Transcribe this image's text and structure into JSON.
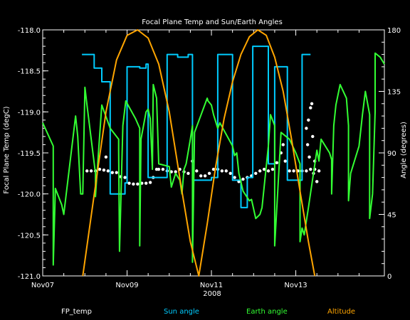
{
  "chart_data": {
    "type": "line",
    "title": "Focal Plane Temp and Sun/Earth Angles",
    "xlabel": "2008",
    "ylabel_left": "Focal Plane Temp (degC)",
    "ylabel_right": "Angle (degrees)",
    "x_unit": "days since Nov07",
    "x_range": [
      0,
      8.1
    ],
    "x_ticks": [
      {
        "x": 0,
        "label": "Nov07"
      },
      {
        "x": 2,
        "label": "Nov09"
      },
      {
        "x": 4,
        "label": "Nov11"
      },
      {
        "x": 6,
        "label": "Nov13"
      }
    ],
    "ylim_left": [
      -121.0,
      -118.0
    ],
    "yticks_left": [
      "-118.0",
      "-118.5",
      "-119.0",
      "-119.5",
      "-120.0",
      "-120.5",
      "-121.0"
    ],
    "ylim_right": [
      0,
      180
    ],
    "yticks_right": [
      "0",
      "45",
      "90",
      "135",
      "180"
    ],
    "grid": false,
    "series": [
      {
        "name": "FP_temp",
        "axis": "left",
        "style": "points",
        "color": "#ffffff",
        "points": [
          [
            1.05,
            -119.72
          ],
          [
            1.15,
            -119.72
          ],
          [
            1.25,
            -119.72
          ],
          [
            1.35,
            -119.7
          ],
          [
            1.45,
            -119.71
          ],
          [
            1.5,
            -119.55
          ],
          [
            1.55,
            -119.72
          ],
          [
            1.65,
            -119.74
          ],
          [
            1.75,
            -119.74
          ],
          [
            1.85,
            -119.79
          ],
          [
            1.95,
            -119.8
          ],
          [
            2.05,
            -119.87
          ],
          [
            2.15,
            -119.88
          ],
          [
            2.25,
            -119.88
          ],
          [
            2.35,
            -119.87
          ],
          [
            2.45,
            -119.87
          ],
          [
            2.55,
            -119.86
          ],
          [
            2.62,
            -119.8
          ],
          [
            2.7,
            -119.7
          ],
          [
            2.75,
            -119.7
          ],
          [
            2.85,
            -119.7
          ],
          [
            2.95,
            -119.72
          ],
          [
            3.05,
            -119.73
          ],
          [
            3.15,
            -119.73
          ],
          [
            3.25,
            -119.7
          ],
          [
            3.35,
            -119.73
          ],
          [
            3.45,
            -119.75
          ],
          [
            3.55,
            -119.6
          ],
          [
            3.65,
            -119.72
          ],
          [
            3.75,
            -119.78
          ],
          [
            3.85,
            -119.78
          ],
          [
            3.95,
            -119.75
          ],
          [
            4.05,
            -119.7
          ],
          [
            4.15,
            -119.7
          ],
          [
            4.25,
            -119.72
          ],
          [
            4.35,
            -119.72
          ],
          [
            4.45,
            -119.75
          ],
          [
            4.55,
            -119.8
          ],
          [
            4.65,
            -119.85
          ],
          [
            4.75,
            -119.82
          ],
          [
            4.85,
            -119.8
          ],
          [
            4.95,
            -119.78
          ],
          [
            5.05,
            -119.75
          ],
          [
            5.15,
            -119.72
          ],
          [
            5.25,
            -119.7
          ],
          [
            5.35,
            -119.72
          ],
          [
            5.45,
            -119.7
          ],
          [
            5.55,
            -119.62
          ],
          [
            5.65,
            -119.5
          ],
          [
            5.7,
            -119.4
          ],
          [
            5.75,
            -119.6
          ],
          [
            5.85,
            -119.72
          ],
          [
            5.95,
            -119.72
          ],
          [
            6.05,
            -119.72
          ],
          [
            6.15,
            -119.72
          ],
          [
            6.25,
            -119.72
          ],
          [
            6.35,
            -119.7
          ],
          [
            6.45,
            -119.7
          ],
          [
            6.55,
            -119.72
          ],
          [
            6.3,
            -119.1
          ],
          [
            6.35,
            -118.95
          ],
          [
            6.4,
            -119.3
          ],
          [
            6.25,
            -119.2
          ],
          [
            6.28,
            -119.4
          ],
          [
            6.32,
            -119.55
          ],
          [
            6.45,
            -119.6
          ],
          [
            6.5,
            -119.85
          ],
          [
            6.42,
            -119.75
          ],
          [
            6.38,
            -118.9
          ]
        ]
      },
      {
        "name": "Sun angle",
        "axis": "right",
        "style": "line",
        "color": "#00ccff",
        "points": [
          [
            0.93,
            162
          ],
          [
            1.22,
            162
          ],
          [
            1.22,
            152
          ],
          [
            1.4,
            152
          ],
          [
            1.4,
            142
          ],
          [
            1.6,
            142
          ],
          [
            1.6,
            60
          ],
          [
            1.95,
            60
          ],
          [
            1.95,
            68
          ],
          [
            2.0,
            68
          ],
          [
            2.0,
            153
          ],
          [
            2.3,
            153
          ],
          [
            2.3,
            152
          ],
          [
            2.45,
            152
          ],
          [
            2.45,
            155
          ],
          [
            2.5,
            155
          ],
          [
            2.5,
            72
          ],
          [
            2.95,
            72
          ],
          [
            2.95,
            162
          ],
          [
            3.2,
            162
          ],
          [
            3.2,
            160
          ],
          [
            3.45,
            160
          ],
          [
            3.45,
            162
          ],
          [
            3.55,
            162
          ],
          [
            3.55,
            70
          ],
          [
            4.0,
            70
          ],
          [
            4.0,
            72
          ],
          [
            4.15,
            72
          ],
          [
            4.15,
            162
          ],
          [
            4.5,
            162
          ],
          [
            4.5,
            70
          ],
          [
            4.7,
            70
          ],
          [
            4.7,
            50
          ],
          [
            4.85,
            50
          ],
          [
            4.85,
            72
          ],
          [
            4.98,
            72
          ],
          [
            4.98,
            168
          ],
          [
            5.35,
            168
          ],
          [
            5.35,
            82
          ],
          [
            5.5,
            82
          ],
          [
            5.5,
            153
          ],
          [
            5.8,
            153
          ],
          [
            5.8,
            70
          ],
          [
            6.15,
            70
          ],
          [
            6.15,
            162
          ],
          [
            6.35,
            162
          ]
        ]
      },
      {
        "name": "Earth angle",
        "axis": "right",
        "style": "line",
        "color": "#33ff33",
        "points": [
          [
            0,
            112
          ],
          [
            0.25,
            95
          ],
          [
            0.25,
            8
          ],
          [
            0.3,
            64
          ],
          [
            0.45,
            52
          ],
          [
            0.5,
            45
          ],
          [
            0.55,
            58
          ],
          [
            0.78,
            117
          ],
          [
            0.83,
            102
          ],
          [
            0.9,
            60
          ],
          [
            0.95,
            60
          ],
          [
            1.0,
            138
          ],
          [
            1.05,
            125
          ],
          [
            1.25,
            75
          ],
          [
            1.25,
            58
          ],
          [
            1.28,
            72
          ],
          [
            1.4,
            125
          ],
          [
            1.6,
            108
          ],
          [
            1.8,
            100
          ],
          [
            1.8,
            92
          ],
          [
            1.82,
            18
          ],
          [
            1.9,
            110
          ],
          [
            1.97,
            128
          ],
          [
            2.2,
            115
          ],
          [
            2.3,
            108
          ],
          [
            2.3,
            22
          ],
          [
            2.33,
            100
          ],
          [
            2.45,
            120
          ],
          [
            2.5,
            122
          ],
          [
            2.55,
            115
          ],
          [
            2.6,
            78
          ],
          [
            2.62,
            140
          ],
          [
            2.7,
            130
          ],
          [
            2.75,
            82
          ],
          [
            3.0,
            80
          ],
          [
            3.05,
            65
          ],
          [
            3.15,
            75
          ],
          [
            3.25,
            70
          ],
          [
            3.3,
            60
          ],
          [
            3.35,
            78
          ],
          [
            3.4,
            82
          ],
          [
            3.5,
            100
          ],
          [
            3.55,
            110
          ],
          [
            3.55,
            10
          ],
          [
            3.6,
            105
          ],
          [
            3.9,
            130
          ],
          [
            3.92,
            128
          ],
          [
            4.0,
            125
          ],
          [
            4.05,
            118
          ],
          [
            4.15,
            108
          ],
          [
            4.2,
            112
          ],
          [
            4.5,
            95
          ],
          [
            4.55,
            88
          ],
          [
            4.6,
            90
          ],
          [
            4.65,
            75
          ],
          [
            4.75,
            62
          ],
          [
            4.9,
            55
          ],
          [
            4.95,
            56
          ],
          [
            5.05,
            42
          ],
          [
            5.15,
            45
          ],
          [
            5.2,
            50
          ],
          [
            5.35,
            95
          ],
          [
            5.4,
            118
          ],
          [
            5.5,
            110
          ],
          [
            5.5,
            22
          ],
          [
            5.55,
            50
          ],
          [
            5.65,
            105
          ],
          [
            5.85,
            100
          ],
          [
            6.0,
            90
          ],
          [
            6.1,
            82
          ],
          [
            6.1,
            25
          ],
          [
            6.15,
            35
          ],
          [
            6.2,
            30
          ],
          [
            6.3,
            50
          ],
          [
            6.5,
            92
          ],
          [
            6.55,
            84
          ],
          [
            6.6,
            100
          ],
          [
            6.8,
            90
          ],
          [
            6.85,
            85
          ],
          [
            6.85,
            60
          ],
          [
            6.9,
            110
          ],
          [
            6.95,
            125
          ],
          [
            7.05,
            140
          ],
          [
            7.2,
            130
          ],
          [
            7.25,
            110
          ],
          [
            7.25,
            55
          ],
          [
            7.3,
            75
          ],
          [
            7.5,
            95
          ],
          [
            7.58,
            118
          ],
          [
            7.65,
            135
          ],
          [
            7.75,
            118
          ],
          [
            7.75,
            42
          ],
          [
            7.82,
            60
          ],
          [
            7.88,
            120
          ],
          [
            7.88,
            163
          ],
          [
            8.0,
            160
          ],
          [
            8.1,
            155
          ]
        ]
      },
      {
        "name": "Altitude",
        "axis": "right",
        "style": "line",
        "color": "#ffa500",
        "points": [
          [
            0.95,
            0
          ],
          [
            1.2,
            55
          ],
          [
            1.5,
            120
          ],
          [
            1.75,
            158
          ],
          [
            2.0,
            176
          ],
          [
            2.25,
            180
          ],
          [
            2.5,
            174
          ],
          [
            2.75,
            155
          ],
          [
            3.0,
            120
          ],
          [
            3.3,
            62
          ],
          [
            3.5,
            25
          ],
          [
            3.7,
            0
          ],
          [
            3.9,
            38
          ],
          [
            4.1,
            80
          ],
          [
            4.3,
            115
          ],
          [
            4.5,
            142
          ],
          [
            4.7,
            162
          ],
          [
            4.9,
            175
          ],
          [
            5.1,
            180
          ],
          [
            5.3,
            176
          ],
          [
            5.5,
            160
          ],
          [
            5.7,
            135
          ],
          [
            5.9,
            100
          ],
          [
            6.1,
            62
          ],
          [
            6.3,
            25
          ],
          [
            6.45,
            0
          ]
        ]
      }
    ]
  }
}
